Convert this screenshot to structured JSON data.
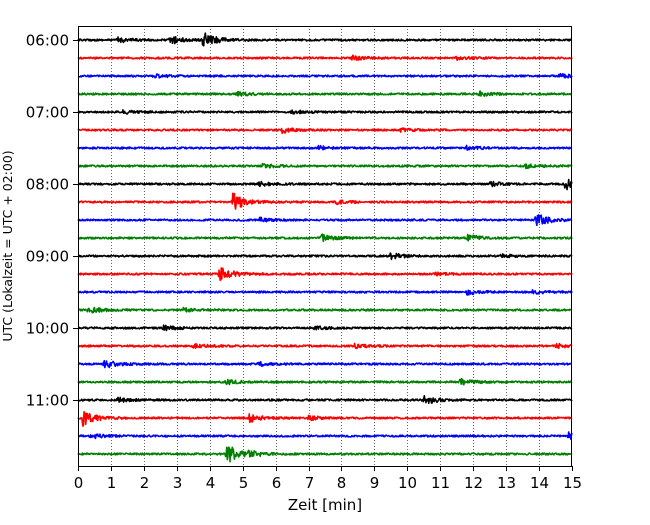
{
  "chart_data": {
    "type": "line",
    "title": "",
    "xlabel": "Zeit  [min]",
    "ylabel": "UTC (Lokalzeit = UTC + 02:00)",
    "xlim": [
      0,
      15
    ],
    "x_ticks": [
      "0",
      "1",
      "2",
      "3",
      "4",
      "5",
      "6",
      "7",
      "8",
      "9",
      "10",
      "11",
      "12",
      "13",
      "14",
      "15"
    ],
    "y_ticks": [
      "06:00",
      "07:00",
      "08:00",
      "09:00",
      "10:00",
      "11:00"
    ],
    "grid": "vertical-dotted",
    "legend": "none",
    "trace_colors": [
      "#000000",
      "#ff0000",
      "#0000ff",
      "#008000"
    ],
    "series": [
      {
        "start": "06:00",
        "color": "#000000",
        "events": [
          {
            "t": 1.2,
            "amp": 1.2
          },
          {
            "t": 2.8,
            "amp": 1.8
          },
          {
            "t": 3.8,
            "amp": 3.5
          }
        ]
      },
      {
        "start": "06:15",
        "color": "#ff0000",
        "events": [
          {
            "t": 8.3,
            "amp": 1.0
          },
          {
            "t": 11.5,
            "amp": 0.8
          }
        ]
      },
      {
        "start": "06:30",
        "color": "#0000ff",
        "events": [
          {
            "t": 2.3,
            "amp": 0.8
          },
          {
            "t": 14.6,
            "amp": 1.0
          }
        ]
      },
      {
        "start": "06:45",
        "color": "#008000",
        "events": [
          {
            "t": 4.8,
            "amp": 1.0
          },
          {
            "t": 12.2,
            "amp": 0.9
          }
        ]
      },
      {
        "start": "07:00",
        "color": "#000000",
        "events": [
          {
            "t": 1.3,
            "amp": 0.9
          },
          {
            "t": 6.5,
            "amp": 0.8
          }
        ]
      },
      {
        "start": "07:15",
        "color": "#ff0000",
        "events": [
          {
            "t": 6.2,
            "amp": 1.2
          },
          {
            "t": 9.8,
            "amp": 0.7
          }
        ]
      },
      {
        "start": "07:30",
        "color": "#0000ff",
        "events": [
          {
            "t": 7.3,
            "amp": 0.8
          },
          {
            "t": 11.8,
            "amp": 0.8
          }
        ]
      },
      {
        "start": "07:45",
        "color": "#008000",
        "events": [
          {
            "t": 5.6,
            "amp": 0.9
          },
          {
            "t": 13.6,
            "amp": 0.8
          }
        ]
      },
      {
        "start": "08:00",
        "color": "#000000",
        "events": [
          {
            "t": 5.5,
            "amp": 1.0
          },
          {
            "t": 12.5,
            "amp": 1.0
          },
          {
            "t": 14.8,
            "amp": 2.5
          }
        ]
      },
      {
        "start": "08:15",
        "color": "#ff0000",
        "events": [
          {
            "t": 4.7,
            "amp": 4.0
          },
          {
            "t": 7.8,
            "amp": 0.9
          }
        ]
      },
      {
        "start": "08:30",
        "color": "#0000ff",
        "events": [
          {
            "t": 5.5,
            "amp": 1.0
          },
          {
            "t": 13.9,
            "amp": 2.8
          }
        ]
      },
      {
        "start": "08:45",
        "color": "#008000",
        "events": [
          {
            "t": 7.4,
            "amp": 1.6
          },
          {
            "t": 11.8,
            "amp": 1.6
          }
        ]
      },
      {
        "start": "09:00",
        "color": "#000000",
        "events": [
          {
            "t": 9.5,
            "amp": 1.4
          },
          {
            "t": 12.8,
            "amp": 0.8
          }
        ]
      },
      {
        "start": "09:15",
        "color": "#ff0000",
        "events": [
          {
            "t": 4.3,
            "amp": 3.5
          },
          {
            "t": 10.8,
            "amp": 0.7
          }
        ]
      },
      {
        "start": "09:30",
        "color": "#0000ff",
        "events": [
          {
            "t": 11.8,
            "amp": 1.2
          },
          {
            "t": 13.8,
            "amp": 0.9
          }
        ]
      },
      {
        "start": "09:45",
        "color": "#008000",
        "events": [
          {
            "t": 0.3,
            "amp": 1.4
          },
          {
            "t": 3.2,
            "amp": 0.8
          }
        ]
      },
      {
        "start": "10:00",
        "color": "#000000",
        "events": [
          {
            "t": 2.6,
            "amp": 1.1
          },
          {
            "t": 7.2,
            "amp": 0.8
          }
        ]
      },
      {
        "start": "10:15",
        "color": "#ff0000",
        "events": [
          {
            "t": 3.5,
            "amp": 1.3
          },
          {
            "t": 8.4,
            "amp": 1.0
          },
          {
            "t": 14.5,
            "amp": 1.0
          }
        ]
      },
      {
        "start": "10:30",
        "color": "#0000ff",
        "events": [
          {
            "t": 0.8,
            "amp": 1.8
          },
          {
            "t": 5.5,
            "amp": 0.8
          }
        ]
      },
      {
        "start": "10:45",
        "color": "#008000",
        "events": [
          {
            "t": 4.5,
            "amp": 1.0
          },
          {
            "t": 11.6,
            "amp": 1.4
          }
        ]
      },
      {
        "start": "11:00",
        "color": "#000000",
        "events": [
          {
            "t": 1.2,
            "amp": 1.0
          },
          {
            "t": 10.5,
            "amp": 2.0
          }
        ]
      },
      {
        "start": "11:15",
        "color": "#ff0000",
        "events": [
          {
            "t": 0.15,
            "amp": 3.5
          },
          {
            "t": 5.2,
            "amp": 1.8
          },
          {
            "t": 7.0,
            "amp": 0.9
          }
        ]
      },
      {
        "start": "11:30",
        "color": "#0000ff",
        "events": [
          {
            "t": 0.4,
            "amp": 1.0
          },
          {
            "t": 14.9,
            "amp": 1.4
          }
        ]
      },
      {
        "start": "11:45",
        "color": "#008000",
        "events": [
          {
            "t": 4.5,
            "amp": 4.5
          },
          {
            "t": 5.2,
            "amp": 1.0
          }
        ]
      }
    ]
  }
}
